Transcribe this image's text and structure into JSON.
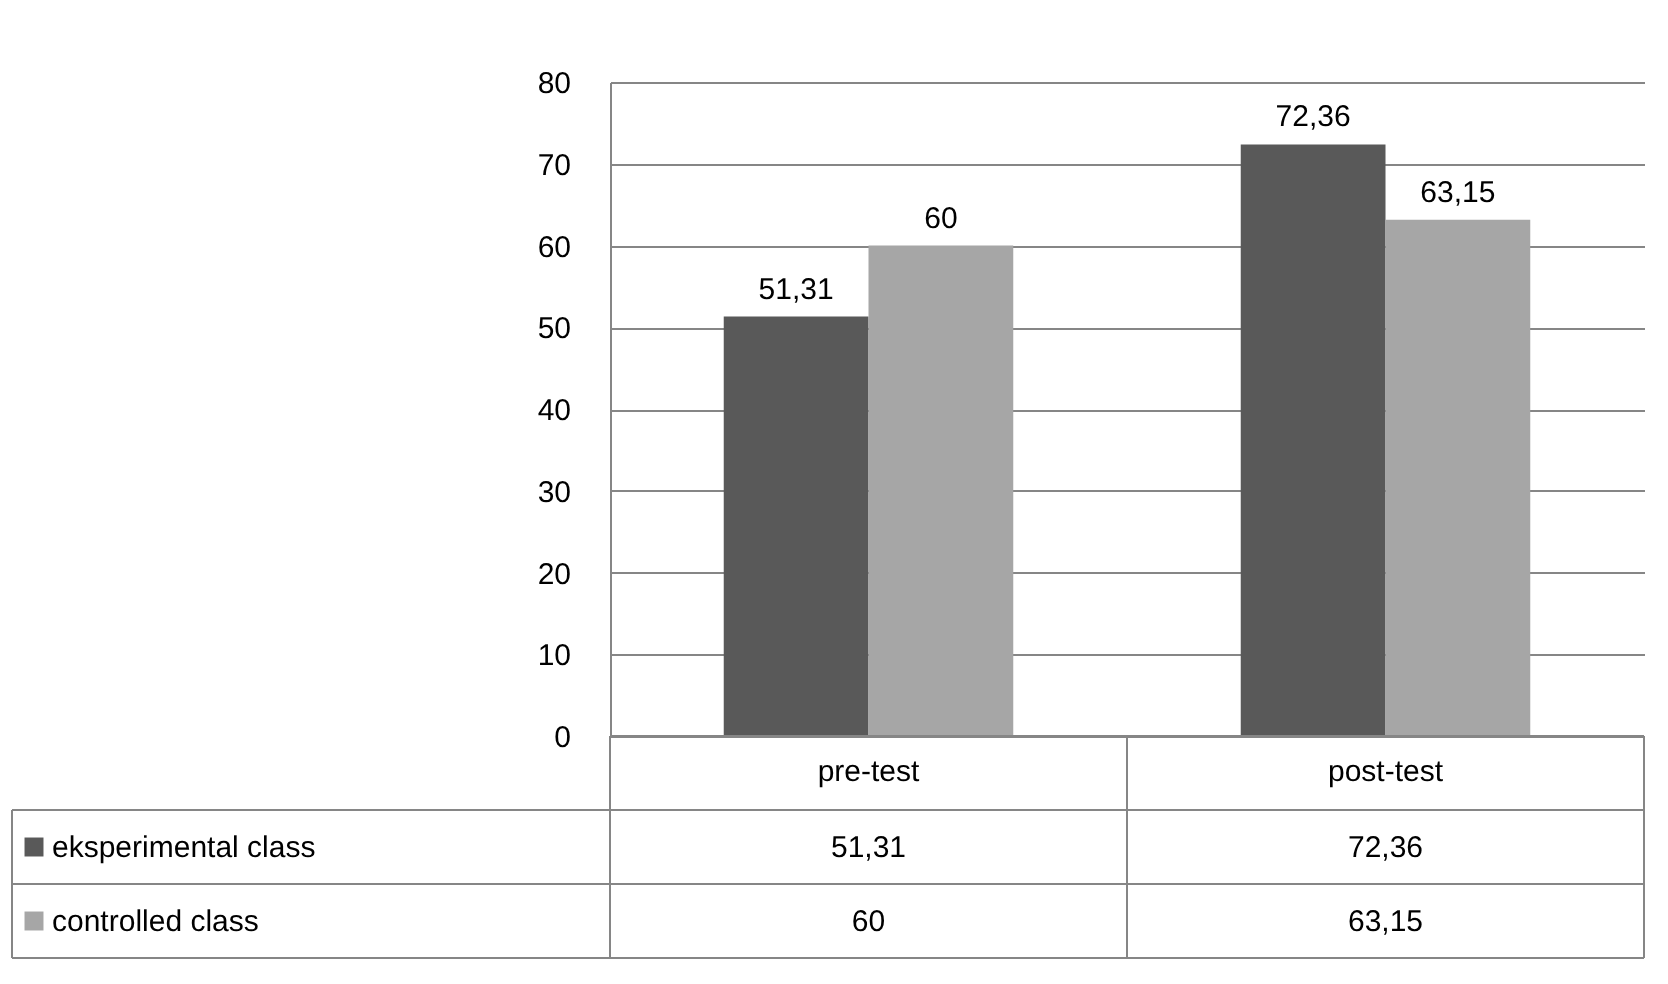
{
  "chart_data": {
    "type": "bar",
    "categories": [
      "pre-test",
      "post-test"
    ],
    "series": [
      {
        "name": "eksperimental class",
        "color": "#595959",
        "values": [
          51.31,
          72.36
        ],
        "value_labels": [
          "51,31",
          "72,36"
        ]
      },
      {
        "name": "controlled class",
        "color": "#a6a6a6",
        "values": [
          60,
          63.15
        ],
        "value_labels": [
          "60",
          "63,15"
        ]
      }
    ],
    "ylim": [
      0,
      80
    ],
    "yticks": [
      0,
      10,
      20,
      30,
      40,
      50,
      60,
      70,
      80
    ],
    "grid": "y",
    "legend": "bottom"
  }
}
